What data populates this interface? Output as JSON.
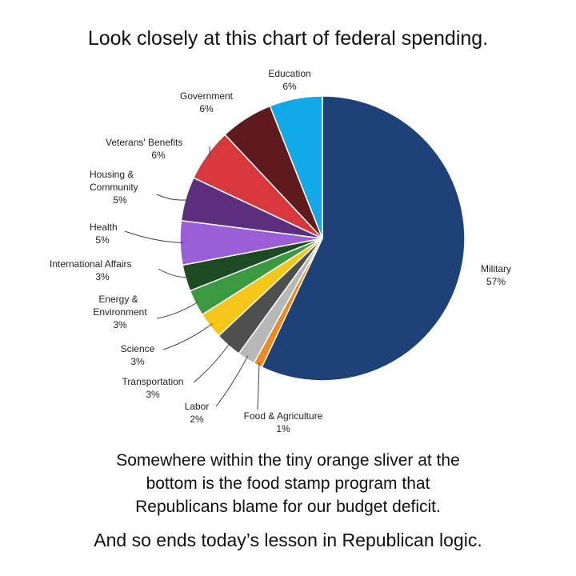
{
  "header": {
    "title": "Look closely at this chart of federal spending."
  },
  "chart_data": {
    "type": "pie",
    "title": "",
    "slices": [
      {
        "name": "Military",
        "pct": "57%",
        "value": 57,
        "color": "#1e4178"
      },
      {
        "name": "Food & Agriculture",
        "pct": "1%",
        "value": 1,
        "color": "#ee8a1e"
      },
      {
        "name": "Labor",
        "pct": "2%",
        "value": 2,
        "color": "#b8b8b8"
      },
      {
        "name": "Transportation",
        "pct": "3%",
        "value": 3,
        "color": "#4f4f4f"
      },
      {
        "name": "Science",
        "pct": "3%",
        "value": 3,
        "color": "#f5c518"
      },
      {
        "name": "Energy & Environment",
        "pct": "3%",
        "value": 3,
        "color": "#3b9a3f"
      },
      {
        "name": "International Affairs",
        "pct": "3%",
        "value": 3,
        "color": "#1c4a22"
      },
      {
        "name": "Health",
        "pct": "5%",
        "value": 5,
        "color": "#9a5ed6"
      },
      {
        "name": "Housing & Community",
        "pct": "5%",
        "value": 5,
        "color": "#5b2f7e"
      },
      {
        "name": "Veterans' Benefits",
        "pct": "6%",
        "value": 6,
        "color": "#d8373b"
      },
      {
        "name": "Government",
        "pct": "6%",
        "value": 6,
        "color": "#5e1a1c"
      },
      {
        "name": "Education",
        "pct": "6%",
        "value": 6,
        "color": "#12a9e8"
      }
    ]
  },
  "labels": {
    "military": {
      "lines": [
        "Military"
      ],
      "pct": "57%"
    },
    "food": {
      "lines": [
        "Food & Agriculture"
      ],
      "pct": "1%"
    },
    "labor": {
      "lines": [
        "Labor"
      ],
      "pct": "2%"
    },
    "transportation": {
      "lines": [
        "Transportation"
      ],
      "pct": "3%"
    },
    "science": {
      "lines": [
        "Science"
      ],
      "pct": "3%"
    },
    "energy": {
      "lines": [
        "Energy &",
        "Environment"
      ],
      "pct": "3%"
    },
    "international": {
      "lines": [
        "International Affairs"
      ],
      "pct": "3%"
    },
    "health": {
      "lines": [
        "Health"
      ],
      "pct": "5%"
    },
    "housing": {
      "lines": [
        "Housing &",
        "Community"
      ],
      "pct": "5%"
    },
    "veterans": {
      "lines": [
        "Veterans' Benefits"
      ],
      "pct": "6%"
    },
    "government": {
      "lines": [
        "Government"
      ],
      "pct": "6%"
    },
    "education": {
      "lines": [
        "Education"
      ],
      "pct": "6%"
    }
  },
  "caption": {
    "line1": "Somewhere within the tiny orange sliver at the",
    "line2": "bottom is the food stamp program that",
    "line3": "Republicans blame for our budget deficit."
  },
  "closing": "And so ends today’s lesson in Republican logic."
}
